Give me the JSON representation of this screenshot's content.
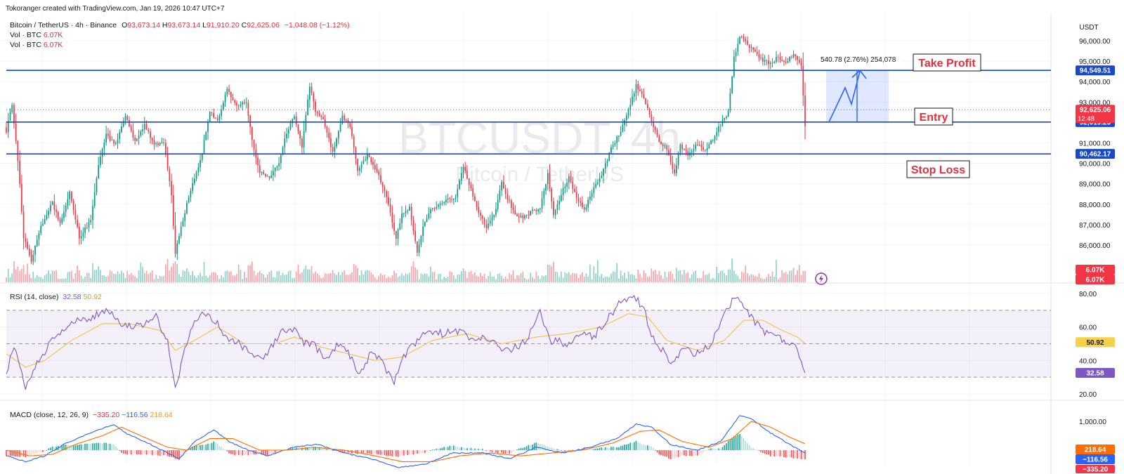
{
  "attribution": "Tokoranger created with TradingView.com, Jan 19, 2026 10:47 UTC+7",
  "legend": {
    "symbol": "Bitcoin / TetherUS · 4h · Binance",
    "open_label": "O",
    "open": "93,673.14",
    "high_label": "H",
    "high": "93,673.14",
    "low_label": "L",
    "low": "91,910.20",
    "close_label": "C",
    "close": "92,625.06",
    "change": "−1,048.08 (−1.12%)",
    "vol_label": "Vol · BTC",
    "vol_value": "6.07K"
  },
  "watermark": {
    "ticker": "BTCUSDT, 4h",
    "name": "Bitcoin / TetherUS"
  },
  "rsi_legend": {
    "label": "RSI (14, close)",
    "rsi": "32.58",
    "ma": "50.92"
  },
  "macd_legend": {
    "label": "MACD (close, 12, 26, 9)",
    "hist": "−335.20",
    "macd": "−116.56",
    "signal": "218.64"
  },
  "position_info": "540.78 (2.76%) 254,078",
  "labels": {
    "take_profit": "Take Profit",
    "entry": "Entry",
    "stop_loss": "Stop Loss"
  },
  "colors": {
    "up": "#089981",
    "down": "#f23645",
    "line": "#1848cc",
    "rsi": "#7e57c2",
    "rsi_ma": "#f0c24a",
    "macd": "#2962ff",
    "signal": "#ff6d00"
  },
  "chart_data": [
    {
      "type": "candlestick",
      "title": "Bitcoin / TetherUS · 4h · Binance",
      "axis_unit": "USDT",
      "ylim": [
        85000,
        96400
      ],
      "y_ticks": [
        "96,000.00",
        "95,000.00",
        "94,000.00",
        "93,000.00",
        "92,000.00",
        "91,000.00",
        "90,000.00",
        "89,000.00",
        "88,000.00",
        "87,000.00",
        "86,000.00"
      ],
      "y_tick_values": [
        96000,
        95000,
        94000,
        93000,
        92000,
        91000,
        90000,
        89000,
        88000,
        87000,
        86000
      ],
      "price_lines": [
        {
          "value": 94549.51,
          "label": "94,549.51"
        },
        {
          "value": 92019.25,
          "label": "92,019.25"
        },
        {
          "value": 90462.17,
          "label": "90,462.17"
        }
      ],
      "last_price": {
        "value": 92625.06,
        "label": "92,625.06",
        "countdown": "12:48"
      },
      "volume_labels": [
        "6.07K",
        "6.07K"
      ],
      "anchors": [
        [
          0,
          91600
        ],
        [
          3,
          92900
        ],
        [
          6,
          90200
        ],
        [
          9,
          86400
        ],
        [
          13,
          85200
        ],
        [
          18,
          86900
        ],
        [
          24,
          88100
        ],
        [
          28,
          87000
        ],
        [
          33,
          88600
        ],
        [
          38,
          86400
        ],
        [
          44,
          87200
        ],
        [
          48,
          89900
        ],
        [
          52,
          91400
        ],
        [
          57,
          90900
        ],
        [
          62,
          92300
        ],
        [
          67,
          91100
        ],
        [
          72,
          91900
        ],
        [
          77,
          90900
        ],
        [
          82,
          91000
        ],
        [
          86,
          88400
        ],
        [
          88,
          85600
        ],
        [
          91,
          86900
        ],
        [
          96,
          88700
        ],
        [
          101,
          90100
        ],
        [
          106,
          92500
        ],
        [
          110,
          92100
        ],
        [
          115,
          93600
        ],
        [
          120,
          92800
        ],
        [
          125,
          93000
        ],
        [
          128,
          91100
        ],
        [
          132,
          89600
        ],
        [
          137,
          89300
        ],
        [
          142,
          90100
        ],
        [
          146,
          91500
        ],
        [
          150,
          92300
        ],
        [
          154,
          90800
        ],
        [
          158,
          93800
        ],
        [
          161,
          92500
        ],
        [
          165,
          92200
        ],
        [
          170,
          90500
        ],
        [
          175,
          92300
        ],
        [
          179,
          91800
        ],
        [
          183,
          89700
        ],
        [
          188,
          90400
        ],
        [
          193,
          89600
        ],
        [
          198,
          88400
        ],
        [
          203,
          86300
        ],
        [
          206,
          87500
        ],
        [
          210,
          87800
        ],
        [
          214,
          85700
        ],
        [
          217,
          86900
        ],
        [
          221,
          87800
        ],
        [
          225,
          87900
        ],
        [
          230,
          88200
        ],
        [
          234,
          88400
        ],
        [
          238,
          89900
        ],
        [
          242,
          88700
        ],
        [
          246,
          87600
        ],
        [
          250,
          86900
        ],
        [
          254,
          87400
        ],
        [
          258,
          89100
        ],
        [
          261,
          88300
        ],
        [
          265,
          87500
        ],
        [
          269,
          87300
        ],
        [
          273,
          87600
        ],
        [
          278,
          87800
        ],
        [
          282,
          89500
        ],
        [
          285,
          87400
        ],
        [
          289,
          88500
        ],
        [
          293,
          89300
        ],
        [
          297,
          88300
        ],
        [
          301,
          87700
        ],
        [
          305,
          88600
        ],
        [
          310,
          89400
        ],
        [
          315,
          90700
        ],
        [
          320,
          91600
        ],
        [
          324,
          92600
        ],
        [
          328,
          93800
        ],
        [
          332,
          93200
        ],
        [
          336,
          92100
        ],
        [
          340,
          91100
        ],
        [
          344,
          90700
        ],
        [
          348,
          89500
        ],
        [
          351,
          90900
        ],
        [
          355,
          90400
        ],
        [
          359,
          90900
        ],
        [
          364,
          90700
        ],
        [
          368,
          91200
        ],
        [
          372,
          91900
        ],
        [
          376,
          92500
        ],
        [
          379,
          95200
        ],
        [
          382,
          96200
        ],
        [
          386,
          95800
        ],
        [
          390,
          95400
        ],
        [
          394,
          95000
        ],
        [
          398,
          94900
        ],
        [
          402,
          95200
        ],
        [
          406,
          94900
        ],
        [
          410,
          95400
        ],
        [
          414,
          94800
        ],
        [
          416,
          91900
        ]
      ],
      "candle_count": 417
    },
    {
      "type": "line",
      "title": "RSI (14, close)",
      "ylim": [
        20,
        80
      ],
      "y_ticks": [
        "80.00",
        "60.00",
        "40.00",
        "20.00"
      ],
      "y_tick_values": [
        80,
        60,
        40,
        20
      ],
      "bands": [
        70,
        50,
        30
      ],
      "series": [
        {
          "name": "RSI",
          "last": 32.58,
          "anchors": [
            [
              0,
              30
            ],
            [
              4,
              50
            ],
            [
              10,
              24
            ],
            [
              16,
              38
            ],
            [
              24,
              52
            ],
            [
              34,
              62
            ],
            [
              44,
              66
            ],
            [
              52,
              70
            ],
            [
              60,
              62
            ],
            [
              68,
              60
            ],
            [
              78,
              66
            ],
            [
              84,
              52
            ],
            [
              88,
              24
            ],
            [
              92,
              42
            ],
            [
              98,
              64
            ],
            [
              104,
              68
            ],
            [
              110,
              62
            ],
            [
              116,
              50
            ],
            [
              120,
              52
            ],
            [
              128,
              42
            ],
            [
              134,
              40
            ],
            [
              142,
              56
            ],
            [
              150,
              58
            ],
            [
              156,
              50
            ],
            [
              160,
              50
            ],
            [
              166,
              40
            ],
            [
              172,
              48
            ],
            [
              178,
              46
            ],
            [
              184,
              30
            ],
            [
              190,
              46
            ],
            [
              196,
              38
            ],
            [
              202,
              28
            ],
            [
              208,
              44
            ],
            [
              214,
              52
            ],
            [
              220,
              58
            ],
            [
              228,
              56
            ],
            [
              236,
              58
            ],
            [
              242,
              52
            ],
            [
              250,
              54
            ],
            [
              258,
              46
            ],
            [
              266,
              48
            ],
            [
              272,
              54
            ],
            [
              278,
              68
            ],
            [
              284,
              52
            ],
            [
              292,
              50
            ],
            [
              300,
              56
            ],
            [
              306,
              54
            ],
            [
              314,
              66
            ],
            [
              320,
              76
            ],
            [
              326,
              78
            ],
            [
              332,
              72
            ],
            [
              336,
              54
            ],
            [
              340,
              48
            ],
            [
              346,
              40
            ],
            [
              352,
              46
            ],
            [
              360,
              44
            ],
            [
              366,
              48
            ],
            [
              372,
              62
            ],
            [
              378,
              76
            ],
            [
              382,
              78
            ],
            [
              388,
              66
            ],
            [
              394,
              58
            ],
            [
              400,
              54
            ],
            [
              406,
              52
            ],
            [
              412,
              48
            ],
            [
              416,
              30
            ]
          ]
        },
        {
          "name": "RSI MA",
          "last": 50.92,
          "anchors": [
            [
              0,
              44
            ],
            [
              10,
              36
            ],
            [
              20,
              40
            ],
            [
              34,
              52
            ],
            [
              50,
              62
            ],
            [
              64,
              62
            ],
            [
              80,
              58
            ],
            [
              88,
              46
            ],
            [
              98,
              52
            ],
            [
              110,
              60
            ],
            [
              124,
              50
            ],
            [
              140,
              50
            ],
            [
              150,
              54
            ],
            [
              164,
              48
            ],
            [
              178,
              44
            ],
            [
              192,
              40
            ],
            [
              206,
              42
            ],
            [
              222,
              52
            ],
            [
              240,
              56
            ],
            [
              258,
              50
            ],
            [
              276,
              54
            ],
            [
              292,
              56
            ],
            [
              310,
              60
            ],
            [
              324,
              68
            ],
            [
              334,
              66
            ],
            [
              344,
              52
            ],
            [
              360,
              46
            ],
            [
              374,
              52
            ],
            [
              384,
              64
            ],
            [
              394,
              64
            ],
            [
              404,
              58
            ],
            [
              412,
              54
            ],
            [
              416,
              50
            ]
          ]
        }
      ]
    },
    {
      "type": "bar",
      "title": "MACD (close, 12, 26, 9)",
      "y_ticks": [
        "1,000.00"
      ],
      "y_tick_values": [
        1000
      ],
      "series": [
        {
          "name": "MACD",
          "last": -116.56,
          "anchors": [
            [
              0,
              -200
            ],
            [
              10,
              -400
            ],
            [
              20,
              -200
            ],
            [
              30,
              200
            ],
            [
              44,
              600
            ],
            [
              56,
              900
            ],
            [
              62,
              600
            ],
            [
              72,
              300
            ],
            [
              84,
              -100
            ],
            [
              90,
              -300
            ],
            [
              98,
              300
            ],
            [
              108,
              700
            ],
            [
              116,
              300
            ],
            [
              126,
              0
            ],
            [
              136,
              -200
            ],
            [
              150,
              100
            ],
            [
              162,
              200
            ],
            [
              176,
              -100
            ],
            [
              190,
              -300
            ],
            [
              204,
              -600
            ],
            [
              218,
              -500
            ],
            [
              232,
              -100
            ],
            [
              248,
              -100
            ],
            [
              262,
              -300
            ],
            [
              276,
              100
            ],
            [
              290,
              -100
            ],
            [
              304,
              100
            ],
            [
              318,
              400
            ],
            [
              328,
              900
            ],
            [
              336,
              800
            ],
            [
              346,
              200
            ],
            [
              360,
              0
            ],
            [
              372,
              300
            ],
            [
              382,
              1200
            ],
            [
              388,
              1100
            ],
            [
              398,
              600
            ],
            [
              408,
              200
            ],
            [
              416,
              -116
            ]
          ]
        },
        {
          "name": "Signal",
          "last": 218.64,
          "anchors": [
            [
              0,
              0
            ],
            [
              12,
              -200
            ],
            [
              24,
              -150
            ],
            [
              36,
              200
            ],
            [
              50,
              500
            ],
            [
              60,
              800
            ],
            [
              70,
              500
            ],
            [
              84,
              100
            ],
            [
              94,
              0
            ],
            [
              106,
              400
            ],
            [
              118,
              400
            ],
            [
              132,
              0
            ],
            [
              146,
              0
            ],
            [
              160,
              100
            ],
            [
              176,
              0
            ],
            [
              192,
              -200
            ],
            [
              206,
              -400
            ],
            [
              222,
              -400
            ],
            [
              236,
              -200
            ],
            [
              252,
              -100
            ],
            [
              268,
              -200
            ],
            [
              284,
              -100
            ],
            [
              300,
              0
            ],
            [
              316,
              250
            ],
            [
              330,
              650
            ],
            [
              340,
              700
            ],
            [
              352,
              300
            ],
            [
              366,
              100
            ],
            [
              378,
              400
            ],
            [
              388,
              1000
            ],
            [
              398,
              800
            ],
            [
              408,
              450
            ],
            [
              416,
              219
            ]
          ]
        }
      ]
    }
  ]
}
